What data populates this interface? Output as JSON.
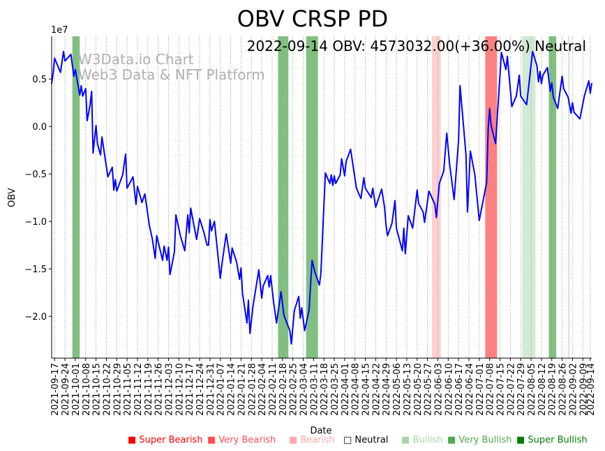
{
  "chart_data": {
    "type": "line",
    "title": "OBV CRSP PD",
    "annotation": "2022-09-14 OBV: 4573032.00(+36.00%) Neutral",
    "watermark": [
      "W3Data.io Chart",
      "Web3 Data & NFT Platform"
    ],
    "xlabel": "Date",
    "ylabel": "OBV",
    "y_scale_label": "1e7",
    "y_unit": 10000000,
    "x_start_date": "2021-09-15",
    "x_range_days": [
      0,
      365
    ],
    "ylim": [
      -2.44,
      0.95
    ],
    "grid": "vertical dotted at x ticks",
    "line_color": "#0000ff",
    "y_ticks": [
      {
        "value": -2.0,
        "label": "−2.0"
      },
      {
        "value": -1.5,
        "label": "−1.5"
      },
      {
        "value": -1.0,
        "label": "−1.0"
      },
      {
        "value": -0.5,
        "label": "−0.5"
      },
      {
        "value": 0.0,
        "label": "0.0"
      },
      {
        "value": 0.5,
        "label": "0.5"
      }
    ],
    "x_ticks": [
      {
        "day": 2,
        "label": "2021-09-17"
      },
      {
        "day": 9,
        "label": "2021-09-24"
      },
      {
        "day": 16,
        "label": "2021-10-01"
      },
      {
        "day": 23,
        "label": "2021-10-08"
      },
      {
        "day": 30,
        "label": "2021-10-15"
      },
      {
        "day": 37,
        "label": "2021-10-22"
      },
      {
        "day": 44,
        "label": "2021-10-29"
      },
      {
        "day": 51,
        "label": "2021-11-05"
      },
      {
        "day": 58,
        "label": "2021-11-12"
      },
      {
        "day": 65,
        "label": "2021-11-19"
      },
      {
        "day": 72,
        "label": "2021-11-26"
      },
      {
        "day": 79,
        "label": "2021-12-03"
      },
      {
        "day": 86,
        "label": "2021-12-10"
      },
      {
        "day": 93,
        "label": "2021-12-17"
      },
      {
        "day": 100,
        "label": "2021-12-24"
      },
      {
        "day": 107,
        "label": "2021-12-31"
      },
      {
        "day": 114,
        "label": "2022-01-07"
      },
      {
        "day": 121,
        "label": "2022-01-14"
      },
      {
        "day": 128,
        "label": "2022-01-21"
      },
      {
        "day": 135,
        "label": "2022-01-28"
      },
      {
        "day": 142,
        "label": "2022-02-04"
      },
      {
        "day": 149,
        "label": "2022-02-11"
      },
      {
        "day": 156,
        "label": "2022-02-18"
      },
      {
        "day": 163,
        "label": "2022-02-25"
      },
      {
        "day": 170,
        "label": "2022-03-04"
      },
      {
        "day": 177,
        "label": "2022-03-11"
      },
      {
        "day": 184,
        "label": "2022-03-18"
      },
      {
        "day": 191,
        "label": "2022-03-25"
      },
      {
        "day": 198,
        "label": "2022-04-01"
      },
      {
        "day": 205,
        "label": "2022-04-08"
      },
      {
        "day": 212,
        "label": "2022-04-15"
      },
      {
        "day": 219,
        "label": "2022-04-22"
      },
      {
        "day": 226,
        "label": "2022-04-29"
      },
      {
        "day": 233,
        "label": "2022-05-06"
      },
      {
        "day": 240,
        "label": "2022-05-13"
      },
      {
        "day": 247,
        "label": "2022-05-20"
      },
      {
        "day": 254,
        "label": "2022-05-27"
      },
      {
        "day": 261,
        "label": "2022-06-03"
      },
      {
        "day": 268,
        "label": "2022-06-10"
      },
      {
        "day": 275,
        "label": "2022-06-17"
      },
      {
        "day": 282,
        "label": "2022-06-24"
      },
      {
        "day": 289,
        "label": "2022-07-01"
      },
      {
        "day": 296,
        "label": "2022-07-08"
      },
      {
        "day": 303,
        "label": "2022-07-15"
      },
      {
        "day": 310,
        "label": "2022-07-22"
      },
      {
        "day": 317,
        "label": "2022-07-29"
      },
      {
        "day": 324,
        "label": "2022-08-05"
      },
      {
        "day": 331,
        "label": "2022-08-12"
      },
      {
        "day": 338,
        "label": "2022-08-19"
      },
      {
        "day": 345,
        "label": "2022-08-26"
      },
      {
        "day": 352,
        "label": "2022-09-02"
      },
      {
        "day": 359,
        "label": "2022-09-09"
      },
      {
        "day": 364,
        "label": "2022-09-14"
      }
    ],
    "series": [
      {
        "name": "OBV",
        "points": [
          [
            0,
            0.45
          ],
          [
            1,
            0.56
          ],
          [
            2,
            0.72
          ],
          [
            6,
            0.57
          ],
          [
            8,
            0.79
          ],
          [
            9,
            0.69
          ],
          [
            13,
            0.76
          ],
          [
            15,
            0.53
          ],
          [
            16,
            0.6
          ],
          [
            19,
            0.33
          ],
          [
            20,
            0.43
          ],
          [
            21,
            0.32
          ],
          [
            23,
            0.4
          ],
          [
            24,
            0.06
          ],
          [
            26,
            0.23
          ],
          [
            27,
            0.37
          ],
          [
            28,
            -0.28
          ],
          [
            30,
            0.01
          ],
          [
            31,
            -0.18
          ],
          [
            33,
            -0.3
          ],
          [
            34,
            -0.11
          ],
          [
            38,
            -0.53
          ],
          [
            41,
            -0.43
          ],
          [
            42,
            -0.67
          ],
          [
            43,
            -0.56
          ],
          [
            44,
            -0.68
          ],
          [
            48,
            -0.51
          ],
          [
            50,
            -0.29
          ],
          [
            51,
            -0.65
          ],
          [
            55,
            -0.53
          ],
          [
            57,
            -0.82
          ],
          [
            58,
            -0.63
          ],
          [
            61,
            -0.8
          ],
          [
            63,
            -0.71
          ],
          [
            66,
            -1.04
          ],
          [
            68,
            -1.18
          ],
          [
            70,
            -1.39
          ],
          [
            71,
            -1.15
          ],
          [
            75,
            -1.41
          ],
          [
            76,
            -1.26
          ],
          [
            78,
            -1.41
          ],
          [
            79,
            -1.27
          ],
          [
            80,
            -1.56
          ],
          [
            83,
            -1.32
          ],
          [
            84,
            -0.93
          ],
          [
            87,
            -1.15
          ],
          [
            90,
            -1.31
          ],
          [
            92,
            -0.93
          ],
          [
            93,
            -1.12
          ],
          [
            94,
            -0.86
          ],
          [
            96,
            -1.03
          ],
          [
            98,
            -1.19
          ],
          [
            100,
            -0.97
          ],
          [
            103,
            -1.12
          ],
          [
            105,
            -1.25
          ],
          [
            106,
            -1.25
          ],
          [
            107,
            -0.98
          ],
          [
            108,
            -1.1
          ],
          [
            110,
            -1.0
          ],
          [
            114,
            -1.6
          ],
          [
            115,
            -1.46
          ],
          [
            118,
            -1.13
          ],
          [
            121,
            -1.44
          ],
          [
            122,
            -1.28
          ],
          [
            125,
            -1.43
          ],
          [
            127,
            -1.61
          ],
          [
            128,
            -1.49
          ],
          [
            129,
            -1.76
          ],
          [
            132,
            -2.07
          ],
          [
            133,
            -1.83
          ],
          [
            134,
            -2.18
          ],
          [
            136,
            -1.9
          ],
          [
            140,
            -1.51
          ],
          [
            142,
            -1.81
          ],
          [
            143,
            -1.68
          ],
          [
            146,
            -1.57
          ],
          [
            147,
            -1.69
          ],
          [
            148,
            -1.57
          ],
          [
            150,
            -1.85
          ],
          [
            152,
            -2.07
          ],
          [
            155,
            -1.74
          ],
          [
            157,
            -1.99
          ],
          [
            161,
            -2.15
          ],
          [
            162,
            -2.29
          ],
          [
            164,
            -1.94
          ],
          [
            167,
            -1.79
          ],
          [
            168,
            -2.02
          ],
          [
            169,
            -1.91
          ],
          [
            171,
            -2.15
          ],
          [
            174,
            -1.93
          ],
          [
            176,
            -1.41
          ],
          [
            178,
            -1.54
          ],
          [
            181,
            -1.67
          ],
          [
            182,
            -1.54
          ],
          [
            183,
            -1.17
          ],
          [
            185,
            -0.49
          ],
          [
            188,
            -0.6
          ],
          [
            189,
            -0.51
          ],
          [
            190,
            -0.62
          ],
          [
            191,
            -0.52
          ],
          [
            192,
            -0.6
          ],
          [
            195,
            -0.51
          ],
          [
            196,
            -0.34
          ],
          [
            198,
            -0.52
          ],
          [
            199,
            -0.37
          ],
          [
            202,
            -0.24
          ],
          [
            206,
            -0.65
          ],
          [
            209,
            -0.76
          ],
          [
            211,
            -0.54
          ],
          [
            212,
            -0.65
          ],
          [
            216,
            -0.75
          ],
          [
            217,
            -0.65
          ],
          [
            219,
            -0.85
          ],
          [
            223,
            -0.66
          ],
          [
            225,
            -0.85
          ],
          [
            226,
            -1.04
          ],
          [
            227,
            -1.15
          ],
          [
            230,
            -1.02
          ],
          [
            232,
            -0.78
          ],
          [
            233,
            -1.07
          ],
          [
            237,
            -1.31
          ],
          [
            238,
            -1.07
          ],
          [
            239,
            -1.34
          ],
          [
            241,
            -0.94
          ],
          [
            244,
            -1.07
          ],
          [
            247,
            -0.67
          ],
          [
            248,
            -0.81
          ],
          [
            251,
            -0.9
          ],
          [
            252,
            -1.01
          ],
          [
            255,
            -0.68
          ],
          [
            259,
            -0.82
          ],
          [
            260,
            -0.96
          ],
          [
            262,
            -0.6
          ],
          [
            265,
            -0.47
          ],
          [
            267,
            -0.07
          ],
          [
            269,
            -0.4
          ],
          [
            272,
            -0.77
          ],
          [
            275,
            -0.14
          ],
          [
            276,
            0.43
          ],
          [
            280,
            -0.3
          ],
          [
            281,
            -0.9
          ],
          [
            283,
            -0.26
          ],
          [
            286,
            -0.51
          ],
          [
            289,
            -0.99
          ],
          [
            294,
            -0.59
          ],
          [
            295,
            -0.02
          ],
          [
            296,
            0.19
          ],
          [
            297,
            0.01
          ],
          [
            300,
            -0.18
          ],
          [
            302,
            0.3
          ],
          [
            304,
            0.78
          ],
          [
            307,
            0.6
          ],
          [
            308,
            0.74
          ],
          [
            311,
            0.21
          ],
          [
            314,
            0.32
          ],
          [
            316,
            0.54
          ],
          [
            317,
            0.32
          ],
          [
            321,
            0.23
          ],
          [
            325,
            0.79
          ],
          [
            328,
            0.64
          ],
          [
            329,
            0.47
          ],
          [
            330,
            0.58
          ],
          [
            331,
            0.45
          ],
          [
            332,
            0.54
          ],
          [
            335,
            0.62
          ],
          [
            337,
            0.37
          ],
          [
            338,
            0.46
          ],
          [
            339,
            0.31
          ],
          [
            342,
            0.19
          ],
          [
            345,
            0.53
          ],
          [
            346,
            0.4
          ],
          [
            349,
            0.31
          ],
          [
            351,
            0.14
          ],
          [
            352,
            0.25
          ],
          [
            353,
            0.15
          ],
          [
            357,
            0.08
          ],
          [
            360,
            0.32
          ],
          [
            363,
            0.48
          ],
          [
            364,
            0.35
          ],
          [
            365,
            0.457
          ]
        ]
      }
    ],
    "bands": [
      {
        "from": 14,
        "to": 19,
        "signal": "Very Bullish",
        "color": "#80c080"
      },
      {
        "from": 153,
        "to": 160,
        "signal": "Very Bullish",
        "color": "#80c080"
      },
      {
        "from": 172,
        "to": 180,
        "signal": "Very Bullish",
        "color": "#80c080"
      },
      {
        "from": 257,
        "to": 263,
        "signal": "Bearish",
        "color": "#ffd0d0"
      },
      {
        "from": 293,
        "to": 301,
        "signal": "Very Bearish",
        "color": "#ff8080"
      },
      {
        "from": 318,
        "to": 327,
        "signal": "Bullish",
        "color": "#d2e9d2"
      },
      {
        "from": 336,
        "to": 341,
        "signal": "Very Bullish",
        "color": "#80c080"
      },
      {
        "from": 349,
        "to": 350,
        "signal": "Bullish",
        "color": "#d2e9d2"
      }
    ],
    "legend": {
      "position": "bottom",
      "items": [
        {
          "label": "Super Bearish",
          "color": "#ff0000",
          "symbol": "■"
        },
        {
          "label": "Very Bearish",
          "color": "#ff5050",
          "symbol": "■"
        },
        {
          "label": "Bearish",
          "color": "#ffaaaa",
          "symbol": "■"
        },
        {
          "label": "Neutral",
          "color": "#000000",
          "symbol": "□"
        },
        {
          "label": "Bullish",
          "color": "#a8d5a8",
          "symbol": "■"
        },
        {
          "label": "Very Bullish",
          "color": "#50a850",
          "symbol": "■"
        },
        {
          "label": "Super Bullish",
          "color": "#008000",
          "symbol": "■"
        }
      ]
    }
  }
}
